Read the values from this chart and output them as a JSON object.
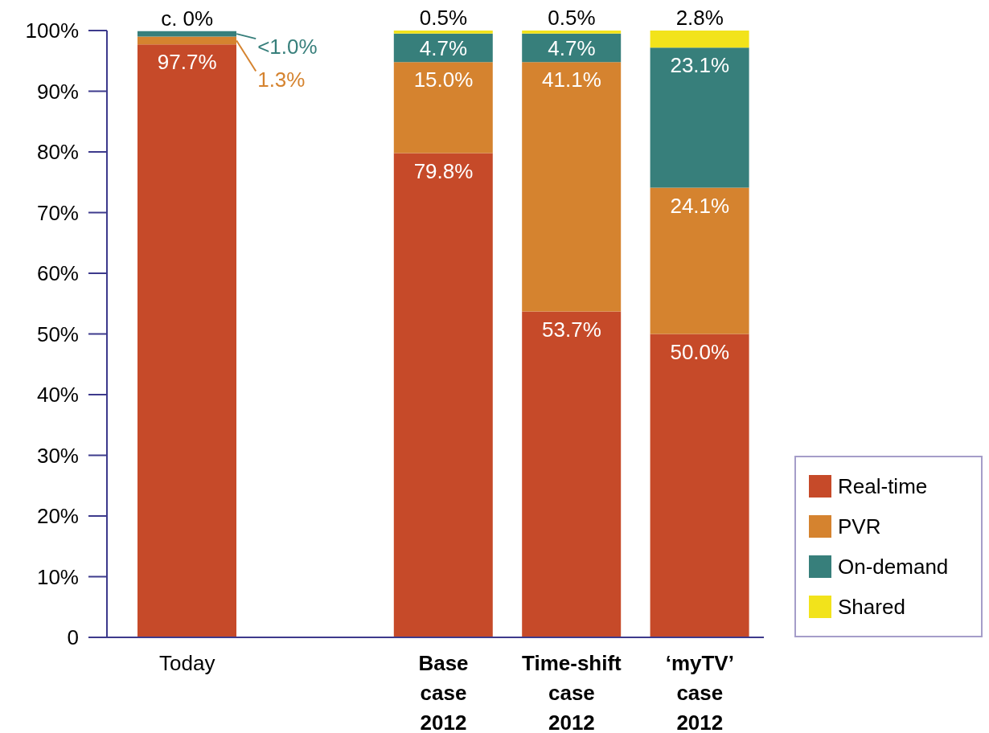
{
  "chart_data": {
    "type": "bar",
    "stacked": true,
    "categories": [
      "Today",
      null,
      "Base case 2012",
      "Time-shift case 2012",
      "‘myTV’ case 2012"
    ],
    "series": [
      {
        "name": "Real-time",
        "color": "#c64a29",
        "values": [
          97.7,
          null,
          79.8,
          53.7,
          50.0
        ],
        "value_labels": [
          "97.7%",
          null,
          "79.8%",
          "53.7%",
          "50.0%"
        ]
      },
      {
        "name": "PVR",
        "color": "#d5832f",
        "values": [
          1.3,
          null,
          15.0,
          41.1,
          24.1
        ],
        "value_labels": [
          "1.3%",
          null,
          "15.0%",
          "41.1%",
          "24.1%"
        ]
      },
      {
        "name": "On-demand",
        "color": "#377f7b",
        "values": [
          0.9,
          null,
          4.7,
          4.7,
          23.1
        ],
        "value_labels": [
          "<1.0%",
          null,
          "4.7%",
          "4.7%",
          "23.1%"
        ]
      },
      {
        "name": "Shared",
        "color": "#f2e31b",
        "values": [
          0,
          null,
          0.5,
          0.5,
          2.8
        ],
        "value_labels": [
          "c. 0%",
          null,
          "0.5%",
          "0.5%",
          "2.8%"
        ]
      }
    ],
    "ylim": [
      0,
      100
    ],
    "yticks": [
      0,
      {
        "value": 10,
        "label": "10%"
      },
      {
        "value": 20,
        "label": "20%"
      },
      {
        "value": 30,
        "label": "30%"
      },
      {
        "value": 40,
        "label": "40%"
      },
      {
        "value": 50,
        "label": "50%"
      },
      {
        "value": 60,
        "label": "60%"
      },
      {
        "value": 70,
        "label": "70%"
      },
      {
        "value": 80,
        "label": "80%"
      },
      {
        "value": 90,
        "label": "90%"
      },
      {
        "value": 100,
        "label": "100%"
      }
    ],
    "legend": "bottom right"
  }
}
